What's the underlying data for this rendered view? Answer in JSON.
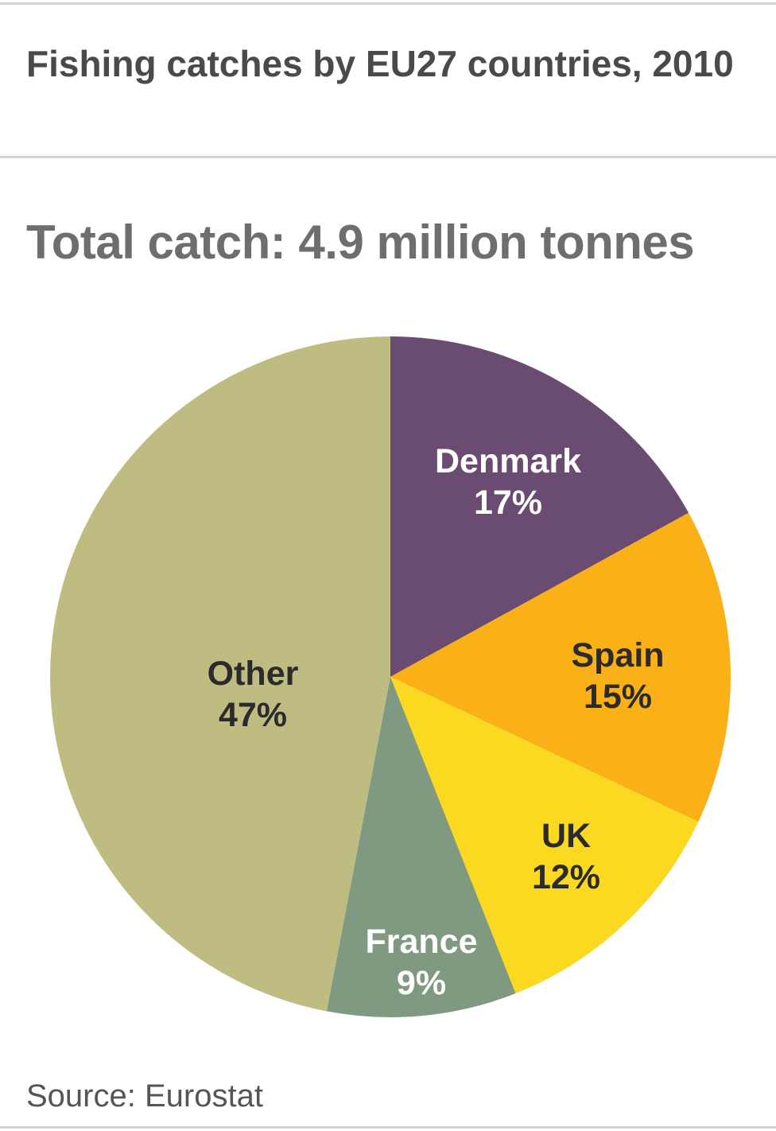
{
  "header": {
    "title": "Fishing catches by EU27 countries, 2010"
  },
  "subtitle": "Total catch: 4.9 million tonnes",
  "footer": {
    "source": "Source: Eurostat"
  },
  "chart_data": {
    "type": "pie",
    "title": "Fishing catches by EU27 countries, 2010",
    "subtitle": "Total catch: 4.9 million tonnes",
    "categories": [
      "Denmark",
      "Spain",
      "UK",
      "France",
      "Other"
    ],
    "values": [
      17,
      15,
      12,
      9,
      47
    ],
    "unit": "%",
    "colors": [
      "#6a4c72",
      "#fab017",
      "#fbd921",
      "#7f9a80",
      "#bfbc82"
    ],
    "label_colors": [
      "#ffffff",
      "#2b2b2b",
      "#2b2b2b",
      "#ffffff",
      "#2b2b2b"
    ],
    "start_angle": "12 o'clock",
    "direction": "clockwise",
    "legend": "none (labels inside slices)",
    "source": "Source: Eurostat"
  },
  "labels": {
    "denmark": {
      "name": "Denmark",
      "pct": "17%"
    },
    "spain": {
      "name": "Spain",
      "pct": "15%"
    },
    "uk": {
      "name": "UK",
      "pct": "12%"
    },
    "france": {
      "name": "France",
      "pct": "9%"
    },
    "other": {
      "name": "Other",
      "pct": "47%"
    }
  }
}
